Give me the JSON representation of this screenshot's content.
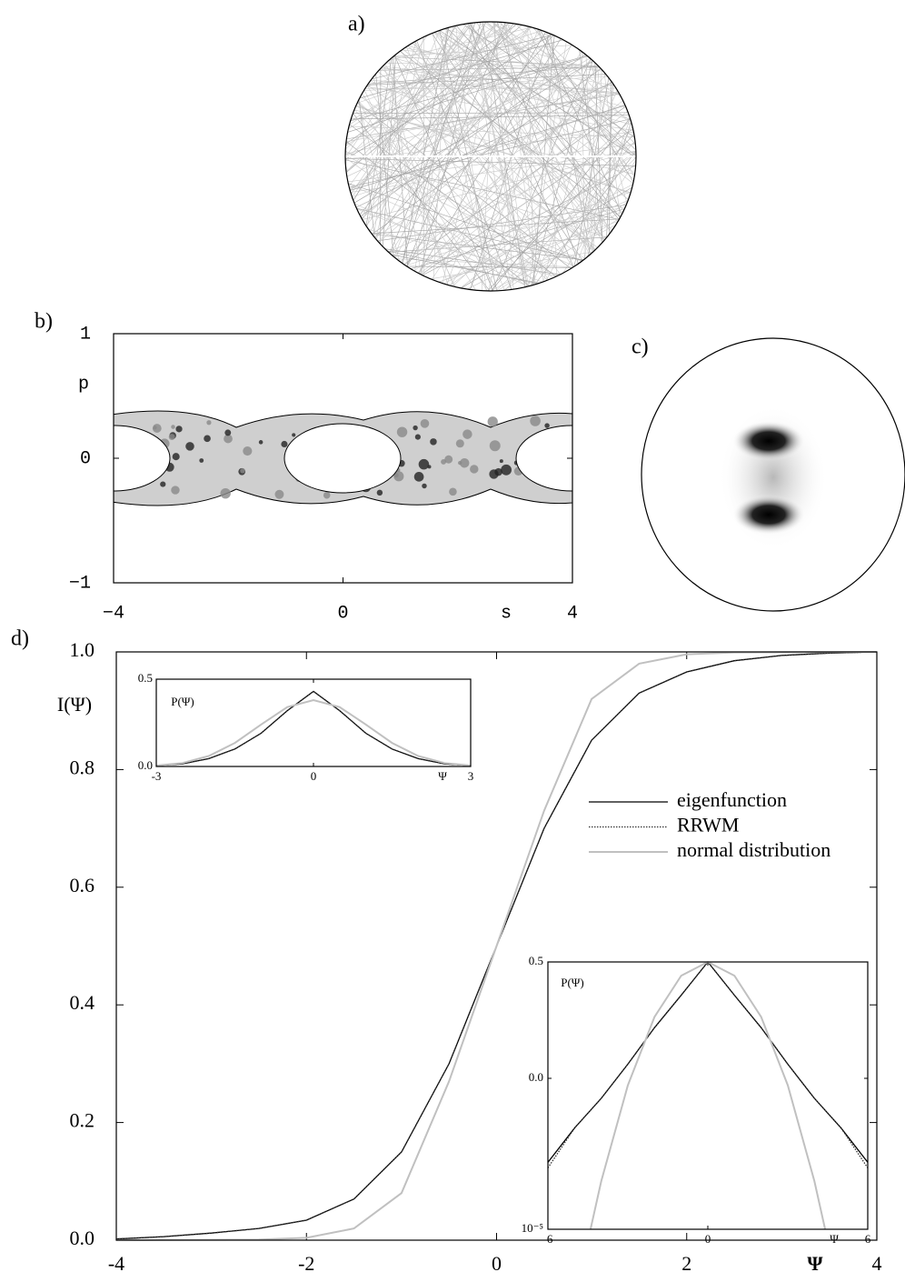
{
  "panel_labels": [
    "a)",
    "b)",
    "c)",
    "d)"
  ],
  "chart_data": [
    {
      "type": "phase-space",
      "x_label": "s",
      "y_label": "p",
      "xlim": [
        -4,
        4
      ],
      "ylim": [
        -1,
        1
      ],
      "xticks": [
        {
          "value": -4,
          "label": "−4"
        },
        0,
        4
      ],
      "yticks": [
        {
          "value": -1,
          "label": "−1"
        },
        0,
        1
      ]
    },
    {
      "type": "line",
      "x_label": "Ψ",
      "y_label": "I(Ψ)",
      "xlim": [
        -4,
        4
      ],
      "ylim": [
        0,
        1
      ],
      "xticks": [
        -4,
        -2,
        0,
        2,
        4
      ],
      "yticks": [
        {
          "value": 0,
          "label": "0.0"
        },
        {
          "value": 0.2,
          "label": "0.2"
        },
        {
          "value": 0.4,
          "label": "0.4"
        },
        {
          "value": 0.6,
          "label": "0.6"
        },
        {
          "value": 0.8,
          "label": "0.8"
        },
        {
          "value": 1,
          "label": "1.0"
        }
      ],
      "legend": "right",
      "series": [
        {
          "name": "eigenfunction",
          "color": "#000000",
          "line_style": "solid",
          "x": [
            -4,
            -3.5,
            -3,
            -2.5,
            -2,
            -1.5,
            -1,
            -0.5,
            0,
            0.5,
            1,
            1.5,
            2,
            2.5,
            3,
            3.5,
            4
          ],
          "values": [
            0.002,
            0.006,
            0.012,
            0.02,
            0.034,
            0.07,
            0.15,
            0.3,
            0.5,
            0.7,
            0.85,
            0.93,
            0.966,
            0.985,
            0.994,
            0.998,
            1.0
          ]
        },
        {
          "name": "RRWM",
          "color": "#333333",
          "line_style": "dotted",
          "x": [
            -4,
            -3.5,
            -3,
            -2.5,
            -2,
            -1.5,
            -1,
            -0.5,
            0,
            0.5,
            1,
            1.5,
            2,
            2.5,
            3,
            3.5,
            4
          ],
          "values": [
            0.002,
            0.006,
            0.012,
            0.02,
            0.034,
            0.07,
            0.15,
            0.3,
            0.5,
            0.7,
            0.85,
            0.93,
            0.966,
            0.985,
            0.994,
            0.998,
            1.0
          ]
        },
        {
          "name": "normal distribution",
          "color": "#c0c0c0",
          "line_style": "solid",
          "x": [
            -4,
            -2.5,
            -2,
            -1.5,
            -1,
            -0.5,
            0,
            0.5,
            1,
            1.5,
            2,
            2.5,
            4
          ],
          "values": [
            0,
            0.001,
            0.004,
            0.02,
            0.08,
            0.27,
            0.5,
            0.73,
            0.92,
            0.98,
            0.996,
            0.999,
            1.0
          ]
        }
      ]
    },
    {
      "type": "line",
      "x_label": "Ψ",
      "y_label": "P(Ψ)",
      "xlim": [
        -3,
        3
      ],
      "ylim": [
        0,
        0.5
      ],
      "xticks": [
        -3,
        0,
        3
      ],
      "yticks": [
        {
          "value": 0,
          "label": "0.0"
        },
        {
          "value": 0.5,
          "label": "0.5"
        }
      ],
      "series": [
        {
          "color": "#000000",
          "line_style": "solid",
          "x": [
            -3,
            -2.5,
            -2,
            -1.5,
            -1,
            -0.5,
            0,
            0.5,
            1,
            1.5,
            2,
            2.5,
            3
          ],
          "values": [
            0.005,
            0.015,
            0.045,
            0.1,
            0.19,
            0.32,
            0.43,
            0.32,
            0.19,
            0.1,
            0.045,
            0.015,
            0.005
          ]
        },
        {
          "color": "#333333",
          "line_style": "dotted",
          "x": [
            -3,
            -2.5,
            -2,
            -1.5,
            -1,
            -0.5,
            0,
            0.5,
            1,
            1.5,
            2,
            2.5,
            3
          ],
          "values": [
            0.005,
            0.015,
            0.045,
            0.1,
            0.19,
            0.32,
            0.43,
            0.32,
            0.19,
            0.1,
            0.045,
            0.015,
            0.005
          ]
        },
        {
          "color": "#c0c0c0",
          "line_style": "solid",
          "x": [
            -3,
            -2.5,
            -2,
            -1.5,
            -1,
            -0.5,
            0,
            0.5,
            1,
            1.5,
            2,
            2.5,
            3
          ],
          "values": [
            0.005,
            0.02,
            0.06,
            0.135,
            0.24,
            0.34,
            0.38,
            0.34,
            0.24,
            0.135,
            0.06,
            0.02,
            0.005
          ]
        }
      ]
    },
    {
      "type": "line",
      "x_label": "Ψ",
      "y_label": "P(Ψ)",
      "log_y": true,
      "xlim": [
        -6,
        6
      ],
      "ylim": [
        1e-05,
        0.5
      ],
      "xticks": [
        -6,
        0,
        6
      ],
      "yticks": [
        {
          "value": 1e-05,
          "label": "10⁻⁵"
        },
        {
          "value": 0.0045,
          "label": "0.0"
        },
        {
          "value": 0.5,
          "label": "0.5"
        }
      ],
      "series": [
        {
          "color": "#000000",
          "line_style": "solid",
          "x": [
            -6,
            -5,
            -4,
            -3,
            -2,
            -1,
            0,
            1,
            2,
            3,
            4,
            5,
            6
          ],
          "values": [
            0.00015,
            0.0006,
            0.002,
            0.008,
            0.035,
            0.13,
            0.5,
            0.13,
            0.035,
            0.008,
            0.002,
            0.0006,
            0.00015
          ]
        },
        {
          "color": "#333333",
          "line_style": "dotted",
          "x": [
            -6,
            -5,
            -4,
            -3,
            -2,
            -1,
            0,
            1,
            2,
            3,
            4,
            5,
            6
          ],
          "values": [
            0.00012,
            0.0006,
            0.002,
            0.008,
            0.035,
            0.13,
            0.5,
            0.13,
            0.035,
            0.008,
            0.002,
            0.0006,
            0.00012
          ]
        },
        {
          "color": "#c0c0c0",
          "line_style": "solid",
          "x": [
            -4.4,
            -4,
            -3,
            -2,
            -1,
            0,
            1,
            2,
            3,
            4,
            4.4
          ],
          "values": [
            1e-05,
            7e-05,
            0.0034,
            0.054,
            0.287,
            0.5,
            0.287,
            0.054,
            0.0034,
            7e-05,
            1e-05
          ]
        }
      ]
    }
  ]
}
